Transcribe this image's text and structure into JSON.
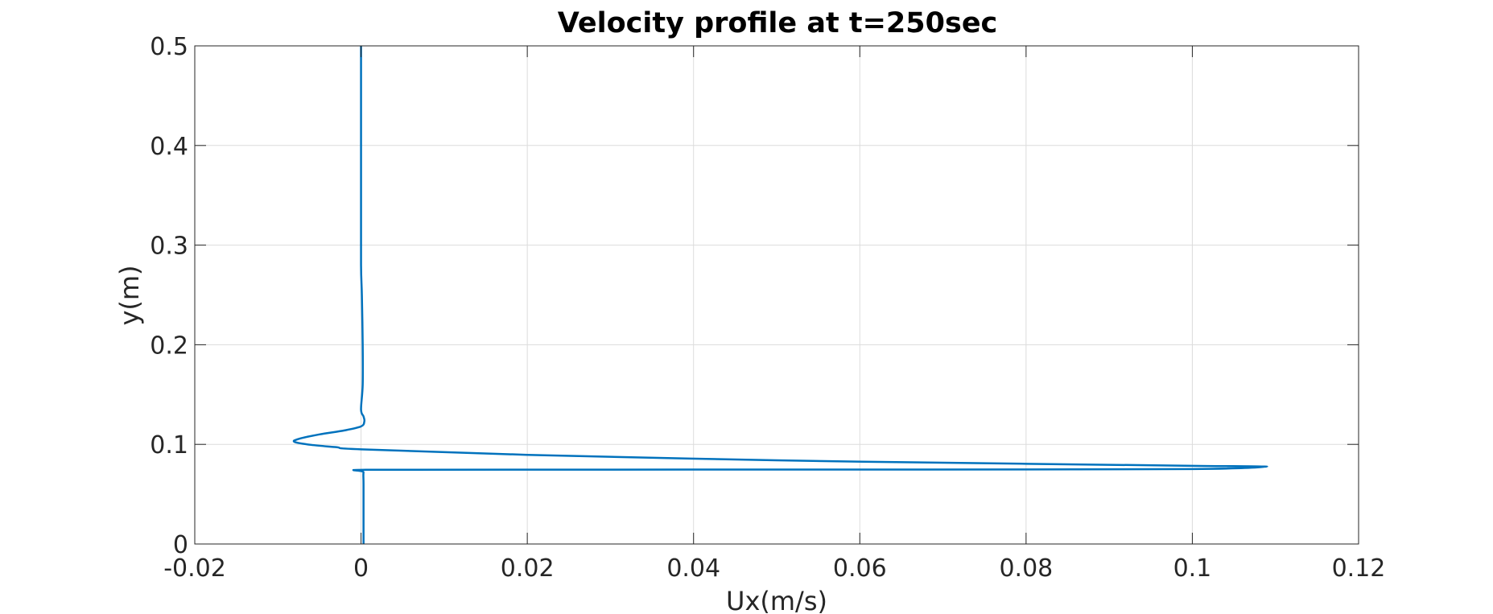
{
  "chart_data": {
    "type": "line",
    "title": "Velocity profile at t=250sec",
    "xlabel": "Ux(m/s)",
    "ylabel": "y(m)",
    "xlim": [
      -0.02,
      0.12
    ],
    "ylim": [
      0,
      0.5
    ],
    "xticks": [
      -0.02,
      0,
      0.02,
      0.04,
      0.06,
      0.08,
      0.1,
      0.12
    ],
    "xtick_labels": [
      "-0.02",
      "0",
      "0.02",
      "0.04",
      "0.06",
      "0.08",
      "0.1",
      "0.12"
    ],
    "yticks": [
      0,
      0.1,
      0.2,
      0.3,
      0.4,
      0.5
    ],
    "ytick_labels": [
      "0",
      "0.1",
      "0.2",
      "0.3",
      "0.4",
      "0.5"
    ],
    "grid": true,
    "colors": {
      "series": "#0072BD",
      "grid": "#dcdcdc",
      "axes": "#262626"
    },
    "series": [
      {
        "x": [
          0.0003,
          0.0003,
          0.0003,
          0.0003,
          0.0006,
          0.02,
          0.05,
          0.08,
          0.1,
          0.109,
          0.1,
          0.08,
          0.05,
          0.02,
          0.0,
          -0.003,
          -0.006,
          -0.008,
          -0.0075,
          -0.005,
          -0.002,
          0.0,
          0.0004,
          0.0003,
          0.0,
          0.0002,
          0.0002,
          0.0001,
          0.0,
          0.0,
          0.0,
          0.0
        ],
        "y": [
          0.0,
          0.03,
          0.06,
          0.072,
          0.0745,
          0.0746,
          0.0747,
          0.0748,
          0.0752,
          0.0775,
          0.0785,
          0.0805,
          0.084,
          0.0895,
          0.095,
          0.0972,
          0.0995,
          0.1025,
          0.1055,
          0.11,
          0.114,
          0.118,
          0.123,
          0.128,
          0.135,
          0.16,
          0.2,
          0.25,
          0.28,
          0.35,
          0.45,
          0.5
        ]
      }
    ]
  }
}
